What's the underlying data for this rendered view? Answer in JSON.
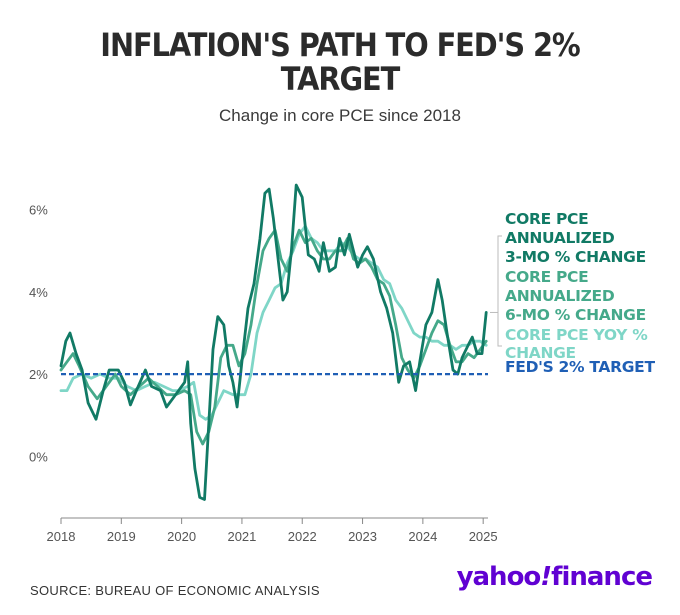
{
  "title_line1": "INFLATION'S PATH TO FED'S 2%",
  "title_line2": "TARGET",
  "subtitle": "Change in core PCE since 2018",
  "source": "SOURCE: BUREAU OF ECONOMIC ANALYSIS",
  "brand": {
    "part1": "yahoo",
    "part2": "!",
    "part3": "finance"
  },
  "colors": {
    "three_mo": "#117a65",
    "six_mo": "#45a98a",
    "yoy": "#7fd6c7",
    "target": "#1f5fb5",
    "axis": "#888888"
  },
  "chart_data": {
    "type": "line",
    "xlim": [
      2018,
      2025.08
    ],
    "ylim": [
      -1.5,
      7.5
    ],
    "x_ticks": [
      {
        "value": 2018,
        "label": "2018"
      },
      {
        "value": 2019,
        "label": "2019"
      },
      {
        "value": 2020,
        "label": "2020"
      },
      {
        "value": 2021,
        "label": "2021"
      },
      {
        "value": 2022,
        "label": "2022"
      },
      {
        "value": 2023,
        "label": "2023"
      },
      {
        "value": 2024,
        "label": "2024"
      },
      {
        "value": 2025,
        "label": "2025"
      }
    ],
    "y_ticks": [
      {
        "value": 6,
        "label": "6%"
      },
      {
        "value": 4,
        "label": "4%"
      },
      {
        "value": 2,
        "label": "2%"
      },
      {
        "value": 0,
        "label": "0%"
      }
    ],
    "target": {
      "value": 2,
      "label": "FED'S 2% TARGET"
    },
    "series": [
      {
        "name": "CORE PCE ANNUALIZED 3-MO % CHANGE",
        "label_lines": [
          "CORE PCE",
          "ANNUALIZED",
          "3-MO % CHANGE"
        ],
        "color_key": "three_mo",
        "points": [
          [
            2018.0,
            2.2
          ],
          [
            2018.08,
            2.8
          ],
          [
            2018.15,
            3.0
          ],
          [
            2018.25,
            2.5
          ],
          [
            2018.35,
            2.1
          ],
          [
            2018.45,
            1.3
          ],
          [
            2018.58,
            0.9
          ],
          [
            2018.7,
            1.6
          ],
          [
            2018.8,
            2.1
          ],
          [
            2018.95,
            2.1
          ],
          [
            2019.05,
            1.8
          ],
          [
            2019.15,
            1.25
          ],
          [
            2019.25,
            1.6
          ],
          [
            2019.4,
            2.1
          ],
          [
            2019.5,
            1.7
          ],
          [
            2019.65,
            1.6
          ],
          [
            2019.75,
            1.2
          ],
          [
            2019.85,
            1.4
          ],
          [
            2019.95,
            1.6
          ],
          [
            2020.05,
            1.8
          ],
          [
            2020.1,
            2.3
          ],
          [
            2020.15,
            0.8
          ],
          [
            2020.22,
            -0.3
          ],
          [
            2020.3,
            -1.0
          ],
          [
            2020.38,
            -1.05
          ],
          [
            2020.45,
            0.8
          ],
          [
            2020.52,
            2.6
          ],
          [
            2020.6,
            3.4
          ],
          [
            2020.7,
            3.2
          ],
          [
            2020.78,
            2.2
          ],
          [
            2020.85,
            1.8
          ],
          [
            2020.92,
            1.2
          ],
          [
            2021.0,
            2.3
          ],
          [
            2021.1,
            3.6
          ],
          [
            2021.2,
            4.2
          ],
          [
            2021.3,
            5.3
          ],
          [
            2021.38,
            6.4
          ],
          [
            2021.45,
            6.5
          ],
          [
            2021.52,
            5.8
          ],
          [
            2021.6,
            4.8
          ],
          [
            2021.68,
            3.8
          ],
          [
            2021.75,
            4.0
          ],
          [
            2021.82,
            5.0
          ],
          [
            2021.9,
            6.6
          ],
          [
            2022.0,
            6.3
          ],
          [
            2022.1,
            4.9
          ],
          [
            2022.2,
            4.8
          ],
          [
            2022.28,
            4.5
          ],
          [
            2022.35,
            5.2
          ],
          [
            2022.45,
            4.5
          ],
          [
            2022.55,
            4.6
          ],
          [
            2022.62,
            5.3
          ],
          [
            2022.7,
            4.9
          ],
          [
            2022.78,
            5.4
          ],
          [
            2022.85,
            5.0
          ],
          [
            2022.92,
            4.6
          ],
          [
            2023.0,
            4.9
          ],
          [
            2023.08,
            5.1
          ],
          [
            2023.18,
            4.8
          ],
          [
            2023.3,
            4.0
          ],
          [
            2023.4,
            3.6
          ],
          [
            2023.5,
            3.0
          ],
          [
            2023.6,
            1.8
          ],
          [
            2023.68,
            2.2
          ],
          [
            2023.78,
            2.3
          ],
          [
            2023.88,
            1.6
          ],
          [
            2023.95,
            2.3
          ],
          [
            2024.05,
            3.2
          ],
          [
            2024.15,
            3.5
          ],
          [
            2024.25,
            4.3
          ],
          [
            2024.32,
            3.8
          ],
          [
            2024.4,
            3.0
          ],
          [
            2024.5,
            2.1
          ],
          [
            2024.58,
            2.0
          ],
          [
            2024.65,
            2.4
          ],
          [
            2024.75,
            2.7
          ],
          [
            2024.82,
            2.9
          ],
          [
            2024.9,
            2.5
          ],
          [
            2024.98,
            2.5
          ],
          [
            2025.05,
            3.5
          ]
        ]
      },
      {
        "name": "CORE PCE ANNUALIZED 6-MO % CHANGE",
        "label_lines": [
          "CORE PCE",
          "ANNUALIZED",
          "6-MO % CHANGE"
        ],
        "color_key": "six_mo",
        "points": [
          [
            2018.0,
            2.1
          ],
          [
            2018.1,
            2.3
          ],
          [
            2018.2,
            2.5
          ],
          [
            2018.3,
            2.2
          ],
          [
            2018.45,
            1.7
          ],
          [
            2018.6,
            1.4
          ],
          [
            2018.75,
            1.7
          ],
          [
            2018.9,
            2.0
          ],
          [
            2019.0,
            1.7
          ],
          [
            2019.15,
            1.5
          ],
          [
            2019.3,
            1.7
          ],
          [
            2019.45,
            1.9
          ],
          [
            2019.6,
            1.7
          ],
          [
            2019.75,
            1.5
          ],
          [
            2019.9,
            1.5
          ],
          [
            2020.05,
            1.6
          ],
          [
            2020.15,
            1.5
          ],
          [
            2020.25,
            0.6
          ],
          [
            2020.35,
            0.3
          ],
          [
            2020.45,
            0.6
          ],
          [
            2020.55,
            1.2
          ],
          [
            2020.65,
            2.4
          ],
          [
            2020.75,
            2.7
          ],
          [
            2020.85,
            2.7
          ],
          [
            2020.95,
            2.2
          ],
          [
            2021.05,
            2.5
          ],
          [
            2021.15,
            3.2
          ],
          [
            2021.25,
            4.2
          ],
          [
            2021.35,
            5.0
          ],
          [
            2021.45,
            5.3
          ],
          [
            2021.55,
            5.5
          ],
          [
            2021.65,
            4.8
          ],
          [
            2021.75,
            4.5
          ],
          [
            2021.85,
            5.1
          ],
          [
            2021.95,
            5.5
          ],
          [
            2022.05,
            5.2
          ],
          [
            2022.15,
            5.3
          ],
          [
            2022.25,
            5.0
          ],
          [
            2022.35,
            4.8
          ],
          [
            2022.45,
            4.8
          ],
          [
            2022.55,
            5.0
          ],
          [
            2022.65,
            5.0
          ],
          [
            2022.75,
            5.3
          ],
          [
            2022.85,
            4.8
          ],
          [
            2022.95,
            4.7
          ],
          [
            2023.05,
            4.8
          ],
          [
            2023.15,
            4.6
          ],
          [
            2023.25,
            4.3
          ],
          [
            2023.35,
            4.2
          ],
          [
            2023.45,
            3.9
          ],
          [
            2023.55,
            3.2
          ],
          [
            2023.65,
            2.4
          ],
          [
            2023.75,
            2.1
          ],
          [
            2023.85,
            1.9
          ],
          [
            2023.95,
            2.2
          ],
          [
            2024.05,
            2.6
          ],
          [
            2024.15,
            3.0
          ],
          [
            2024.25,
            3.3
          ],
          [
            2024.35,
            3.2
          ],
          [
            2024.45,
            2.7
          ],
          [
            2024.55,
            2.3
          ],
          [
            2024.65,
            2.3
          ],
          [
            2024.75,
            2.5
          ],
          [
            2024.85,
            2.4
          ],
          [
            2024.95,
            2.6
          ],
          [
            2025.05,
            2.8
          ]
        ]
      },
      {
        "name": "CORE PCE YOY % CHANGE",
        "label_lines": [
          "CORE PCE YOY %",
          "CHANGE"
        ],
        "color_key": "yoy",
        "points": [
          [
            2018.0,
            1.6
          ],
          [
            2018.1,
            1.6
          ],
          [
            2018.2,
            1.9
          ],
          [
            2018.35,
            2.0
          ],
          [
            2018.5,
            1.9
          ],
          [
            2018.65,
            2.0
          ],
          [
            2018.8,
            1.9
          ],
          [
            2018.95,
            1.9
          ],
          [
            2019.1,
            1.7
          ],
          [
            2019.25,
            1.6
          ],
          [
            2019.4,
            1.7
          ],
          [
            2019.55,
            1.8
          ],
          [
            2019.7,
            1.7
          ],
          [
            2019.85,
            1.6
          ],
          [
            2019.95,
            1.6
          ],
          [
            2020.1,
            1.7
          ],
          [
            2020.2,
            1.8
          ],
          [
            2020.3,
            1.0
          ],
          [
            2020.4,
            0.9
          ],
          [
            2020.5,
            1.0
          ],
          [
            2020.6,
            1.3
          ],
          [
            2020.7,
            1.6
          ],
          [
            2020.85,
            1.5
          ],
          [
            2020.95,
            1.5
          ],
          [
            2021.05,
            1.5
          ],
          [
            2021.15,
            2.0
          ],
          [
            2021.25,
            3.0
          ],
          [
            2021.35,
            3.5
          ],
          [
            2021.45,
            3.8
          ],
          [
            2021.55,
            4.1
          ],
          [
            2021.65,
            4.2
          ],
          [
            2021.75,
            4.7
          ],
          [
            2021.85,
            5.0
          ],
          [
            2021.95,
            5.4
          ],
          [
            2022.05,
            5.6
          ],
          [
            2022.15,
            5.3
          ],
          [
            2022.25,
            5.2
          ],
          [
            2022.35,
            5.0
          ],
          [
            2022.45,
            5.0
          ],
          [
            2022.55,
            5.0
          ],
          [
            2022.65,
            5.2
          ],
          [
            2022.75,
            5.1
          ],
          [
            2022.85,
            4.9
          ],
          [
            2022.95,
            4.8
          ],
          [
            2023.05,
            4.8
          ],
          [
            2023.15,
            4.7
          ],
          [
            2023.25,
            4.6
          ],
          [
            2023.35,
            4.3
          ],
          [
            2023.45,
            4.2
          ],
          [
            2023.55,
            3.8
          ],
          [
            2023.65,
            3.6
          ],
          [
            2023.75,
            3.3
          ],
          [
            2023.85,
            3.0
          ],
          [
            2023.95,
            2.9
          ],
          [
            2024.05,
            2.9
          ],
          [
            2024.15,
            2.8
          ],
          [
            2024.25,
            2.8
          ],
          [
            2024.35,
            2.7
          ],
          [
            2024.45,
            2.7
          ],
          [
            2024.55,
            2.6
          ],
          [
            2024.65,
            2.7
          ],
          [
            2024.75,
            2.7
          ],
          [
            2024.85,
            2.8
          ],
          [
            2024.95,
            2.8
          ],
          [
            2025.05,
            2.7
          ]
        ]
      }
    ]
  }
}
